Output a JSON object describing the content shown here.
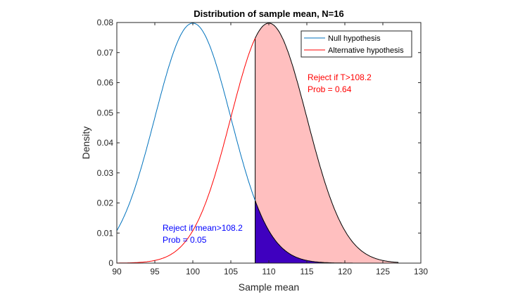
{
  "chart_data": {
    "type": "line",
    "title": "Distribution of sample mean, N=16",
    "xlabel": "Sample mean",
    "ylabel": "Density",
    "xlim": [
      90,
      130
    ],
    "ylim": [
      0,
      0.08
    ],
    "xticks": [
      "90",
      "95",
      "100",
      "105",
      "110",
      "115",
      "120",
      "125",
      "130"
    ],
    "yticks": [
      "0",
      "0.01",
      "0.02",
      "0.03",
      "0.04",
      "0.05",
      "0.06",
      "0.07",
      "0.08"
    ],
    "grid": false,
    "legend_position": "top-right",
    "series": [
      {
        "name": "Null hypothesis",
        "distribution": "normal",
        "mean": 100,
        "sd": 5,
        "x_range": [
          90,
          108.2
        ],
        "color": "#0072BD"
      },
      {
        "name": "Alternative hypothesis",
        "distribution": "normal",
        "mean": 110,
        "sd": 5,
        "x_range": [
          90,
          108.2
        ],
        "color": "#FF0000"
      }
    ],
    "shaded_regions": [
      {
        "of": "Alternative hypothesis",
        "x_range": [
          108.2,
          127
        ],
        "fill": "#FFBFBF",
        "edge": "#000000"
      },
      {
        "of": "Null hypothesis",
        "x_range": [
          108.2,
          127
        ],
        "fill": "#3F00BF",
        "edge": "#000000"
      }
    ],
    "threshold": 108.2,
    "annotations": [
      {
        "lines": [
          "Reject if T>108.2",
          "Prob = 0.64"
        ],
        "color": "#FF0000"
      },
      {
        "lines": [
          "Reject if mean>108.2",
          "Prob = 0.05"
        ],
        "color": "#0000FF"
      }
    ]
  }
}
